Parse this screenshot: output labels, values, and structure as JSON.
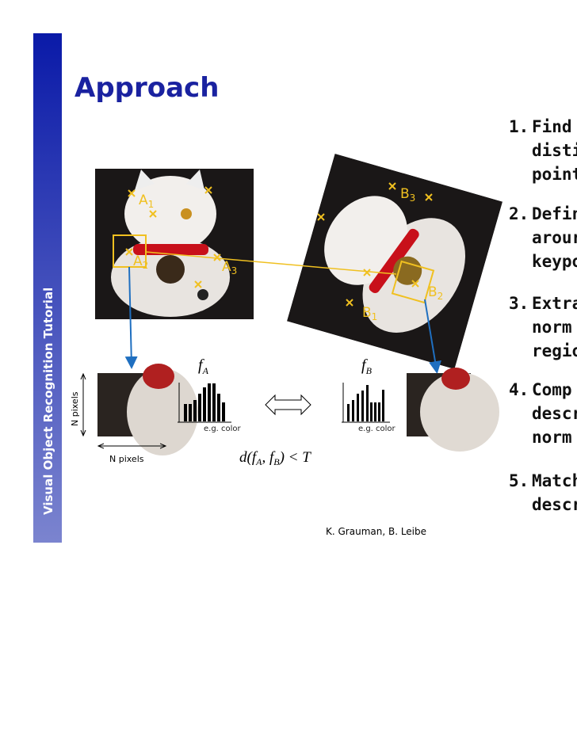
{
  "sidebar": {
    "title": "Visual Object Recognition Tutorial"
  },
  "header": {
    "title": "Approach"
  },
  "steps": [
    {
      "number": "1.",
      "lines": [
        "Find",
        "distin",
        "point"
      ]
    },
    {
      "number": "2.",
      "lines": [
        "Defin",
        "arour",
        "keypo"
      ]
    },
    {
      "number": "3.",
      "lines": [
        "Extra",
        "norm",
        "regio"
      ]
    },
    {
      "number": "4.",
      "lines": [
        "Comp",
        "descr",
        "norm"
      ]
    },
    {
      "number": "5.",
      "lines": [
        "Match",
        "descr"
      ]
    }
  ],
  "figure": {
    "keypoints_a": [
      {
        "letter": "A",
        "index": "1"
      },
      {
        "letter": "A",
        "index": "2"
      },
      {
        "letter": "A",
        "index": "3"
      }
    ],
    "keypoints_b": [
      {
        "letter": "B",
        "index": "1"
      },
      {
        "letter": "B",
        "index": "2"
      },
      {
        "letter": "B",
        "index": "3"
      }
    ],
    "feature_a": {
      "symbol": "f",
      "subscript": "A"
    },
    "feature_b": {
      "symbol": "f",
      "subscript": "B"
    },
    "histogram_note_a": "e.g. color",
    "histogram_note_b": "e.g. color",
    "height_label": "N pixels",
    "width_label": "N pixels",
    "formula": [
      "d(",
      "f",
      "A",
      ", ",
      "f",
      "B",
      ") < T"
    ]
  },
  "footer": {
    "credit": "K. Grauman, B. Leibe"
  }
}
